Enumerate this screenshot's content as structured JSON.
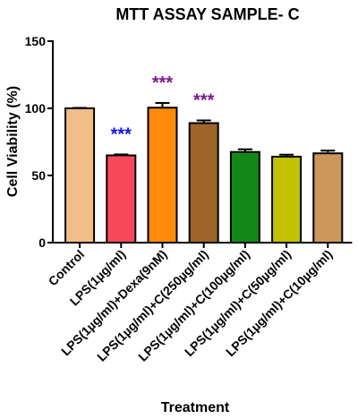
{
  "chart_data": {
    "type": "bar",
    "title": "MTT ASSAY SAMPLE- C",
    "xlabel": "Treatment",
    "ylabel": "Cell Viability (%)",
    "ylim": [
      0,
      150
    ],
    "yticks": [
      0,
      50,
      100,
      150
    ],
    "grid": false,
    "categories": [
      "Control",
      "LPS(1µg/ml)",
      "LPS(1µg/ml)+Dexa(9nM)",
      "LPS(1µg/ml)+C(250µg/ml)",
      "LPS(1µg/ml)+C(100µg/ml)",
      "LPS(1µg/ml)+C(50µg/ml)",
      "LPS(1µg/ml)+C(10µg/ml)"
    ],
    "values": [
      100,
      65,
      100.5,
      89,
      67.5,
      64,
      66.5
    ],
    "errors": [
      0.3,
      0.7,
      3.5,
      2.0,
      2.0,
      1.5,
      2.0
    ],
    "colors": [
      "#F2BE87",
      "#F9485C",
      "#FF8A0C",
      "#9E6428",
      "#138818",
      "#C2C100",
      "#CC975A"
    ],
    "annotations": [
      {
        "category_index": 1,
        "text": "***",
        "color": "#1515E6"
      },
      {
        "category_index": 2,
        "text": "***",
        "color": "#7B1A8C"
      },
      {
        "category_index": 3,
        "text": "***",
        "color": "#7B1A8C"
      }
    ]
  }
}
